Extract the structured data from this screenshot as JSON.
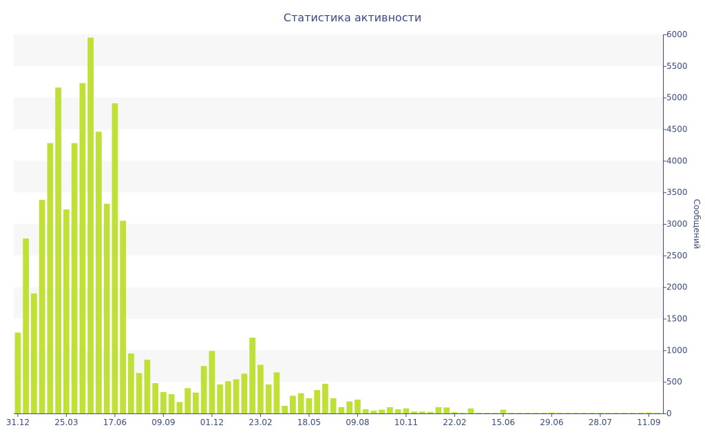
{
  "chart_data": {
    "type": "bar",
    "title": "Статистика активности",
    "xlabel": "",
    "ylabel": "Сообщений",
    "ylim": [
      0,
      6000
    ],
    "y_ticks": [
      0,
      500,
      1000,
      1500,
      2000,
      2500,
      3000,
      3500,
      4000,
      4500,
      5000,
      5500,
      6000
    ],
    "y_axis_side": "right",
    "grid": "alternating horizontal bands",
    "legend": "none",
    "bar_color": "#bfe036",
    "band_color": "#f7f7f7",
    "text_color": "#3a4a80",
    "x_tick_labels": [
      "31.12",
      "25.03",
      "17.06",
      "09.09",
      "01.12",
      "23.02",
      "18.05",
      "09.08",
      "10.11",
      "22.02",
      "15.06",
      "29.06",
      "28.07",
      "11.09"
    ],
    "x_tick_bar_index": [
      0,
      6,
      12,
      18,
      24,
      30,
      36,
      42,
      48,
      54,
      60,
      66,
      72,
      78
    ],
    "values": [
      1280,
      2770,
      1900,
      3380,
      4280,
      5160,
      3230,
      4280,
      5230,
      5950,
      4460,
      3320,
      4910,
      3050,
      950,
      640,
      850,
      480,
      340,
      305,
      180,
      400,
      330,
      750,
      990,
      460,
      510,
      540,
      630,
      1200,
      770,
      460,
      650,
      120,
      280,
      320,
      240,
      370,
      470,
      240,
      100,
      190,
      220,
      65,
      45,
      60,
      100,
      65,
      80,
      30,
      30,
      25,
      100,
      95,
      20,
      10,
      80,
      10,
      10,
      10,
      60,
      10,
      10,
      10,
      10,
      10,
      15,
      10,
      10,
      10,
      10,
      10,
      10,
      10,
      10,
      10,
      10,
      10,
      15,
      10
    ]
  }
}
